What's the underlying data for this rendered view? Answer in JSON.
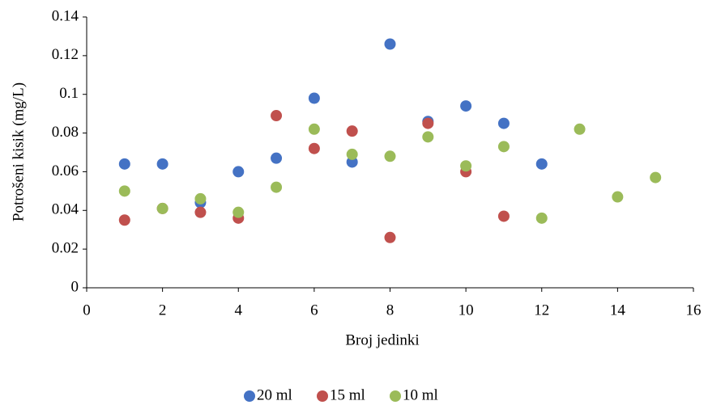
{
  "chart_data": {
    "type": "scatter",
    "x_label": "Broj jedinki",
    "y_label": "Potrošeni kisik (mg/L)",
    "xlim": [
      0,
      16
    ],
    "xticks": [
      0,
      2,
      4,
      6,
      8,
      10,
      12,
      14,
      16
    ],
    "ylim": [
      0,
      0.14
    ],
    "yticks": [
      0,
      0.02,
      0.04,
      0.06,
      0.08,
      0.1,
      0.12,
      0.14
    ],
    "grid": false,
    "legend": "bottom",
    "series": [
      {
        "name": "20 ml",
        "color": "#4472c4",
        "x": [
          1,
          2,
          3,
          4,
          5,
          6,
          7,
          8,
          9,
          10,
          11,
          12
        ],
        "values": [
          0.064,
          0.064,
          0.044,
          0.06,
          0.067,
          0.098,
          0.065,
          0.126,
          0.086,
          0.094,
          0.085,
          0.064
        ]
      },
      {
        "name": "15 ml",
        "color": "#c0504d",
        "x": [
          1,
          2,
          3,
          4,
          5,
          6,
          7,
          8,
          9,
          10,
          11
        ],
        "values": [
          0.035,
          0.041,
          0.039,
          0.036,
          0.089,
          0.072,
          0.081,
          0.026,
          0.085,
          0.06,
          0.037
        ]
      },
      {
        "name": "10 ml",
        "color": "#9bbb59",
        "x": [
          1,
          2,
          3,
          4,
          5,
          6,
          7,
          8,
          9,
          10,
          11,
          12,
          13,
          14,
          15
        ],
        "values": [
          0.05,
          0.041,
          0.046,
          0.039,
          0.052,
          0.082,
          0.069,
          0.068,
          0.078,
          0.063,
          0.073,
          0.036,
          0.082,
          0.047,
          0.057
        ]
      }
    ]
  }
}
